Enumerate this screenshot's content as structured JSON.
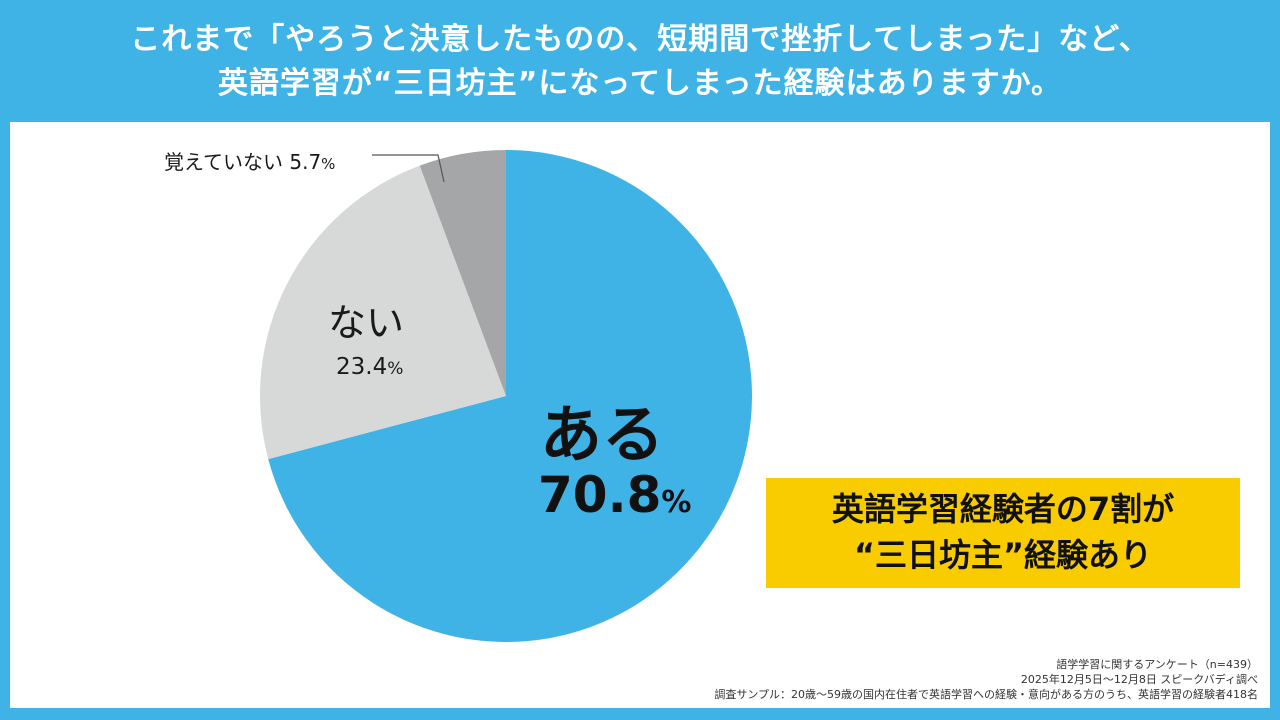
{
  "title": {
    "line1": "これまで「やろうと決意したものの、短期間で挫折してしまった」など、",
    "line2": "英語学習が“三日坊主”になってしまった経験はありますか。"
  },
  "chart_data": {
    "type": "pie",
    "start_angle_deg": 0,
    "direction": "clockwise",
    "slices": [
      {
        "label": "ある",
        "value": 70.8,
        "value_text": "70.8",
        "unit": "%",
        "color": "#3fb3e6"
      },
      {
        "label": "ない",
        "value": 23.4,
        "value_text": "23.4",
        "unit": "%",
        "color": "#d7d8d8"
      },
      {
        "label": "覚えていない",
        "value": 5.7,
        "value_text": "5.7",
        "unit": "%",
        "color": "#a5a6a8"
      }
    ]
  },
  "callout": {
    "line1": "英語学習経験者の7割が",
    "line2": "“三日坊主”経験あり"
  },
  "notes": {
    "line1": "語学学習に関するアンケート（n=439）",
    "line2": "2025年12月5日～12月8日 スピークバディ調べ",
    "line3": "調査サンプル：20歳～59歳の国内在住者で英語学習への経験・意向がある方のうち、英語学習の経験者418名"
  }
}
